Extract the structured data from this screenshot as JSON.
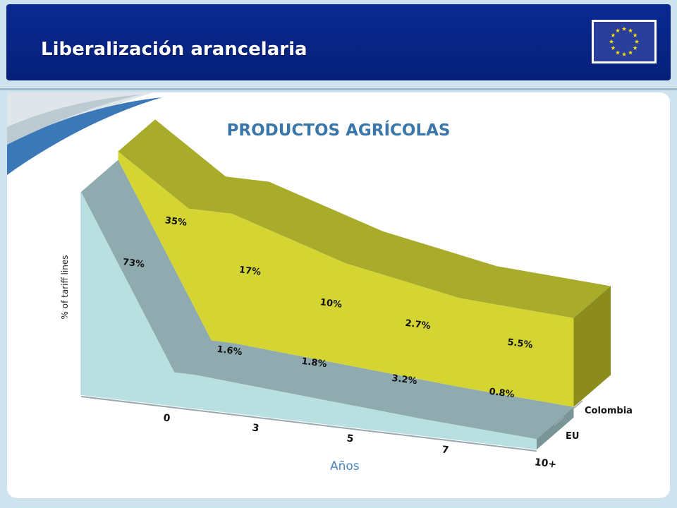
{
  "header": {
    "title": "Liberalización arancelaria"
  },
  "flag": {
    "icon": "eu-flag-icon",
    "colors": {
      "field": "#2a3f9c",
      "stars": "#ffdd00"
    }
  },
  "chart_data": {
    "type": "area",
    "title": "PRODUCTOS AGRÍCOLAS",
    "xlabel": "Años",
    "ylabel": "% of tariff lines",
    "categories": [
      "0",
      "3",
      "5",
      "7",
      "10+"
    ],
    "series": [
      {
        "name": "Colombia",
        "values": [
          35,
          17,
          10,
          2.7,
          5.5
        ],
        "labels": [
          "35%",
          "17%",
          "10%",
          "2.7%",
          "5.5%"
        ],
        "color": "#d4d432",
        "top_color": "#a9ab2a",
        "side_color": "#8c8c1c"
      },
      {
        "name": "EU",
        "values": [
          73,
          1.6,
          1.8,
          3.2,
          0.8
        ],
        "labels": [
          "73%",
          "1.6%",
          "1.8%",
          "3.2%",
          "0.8%"
        ],
        "color": "#b9e0e0",
        "top_color": "#8fabaf",
        "side_color": "#7a9598"
      }
    ],
    "grid": false,
    "legend": "right-side depth labels"
  }
}
